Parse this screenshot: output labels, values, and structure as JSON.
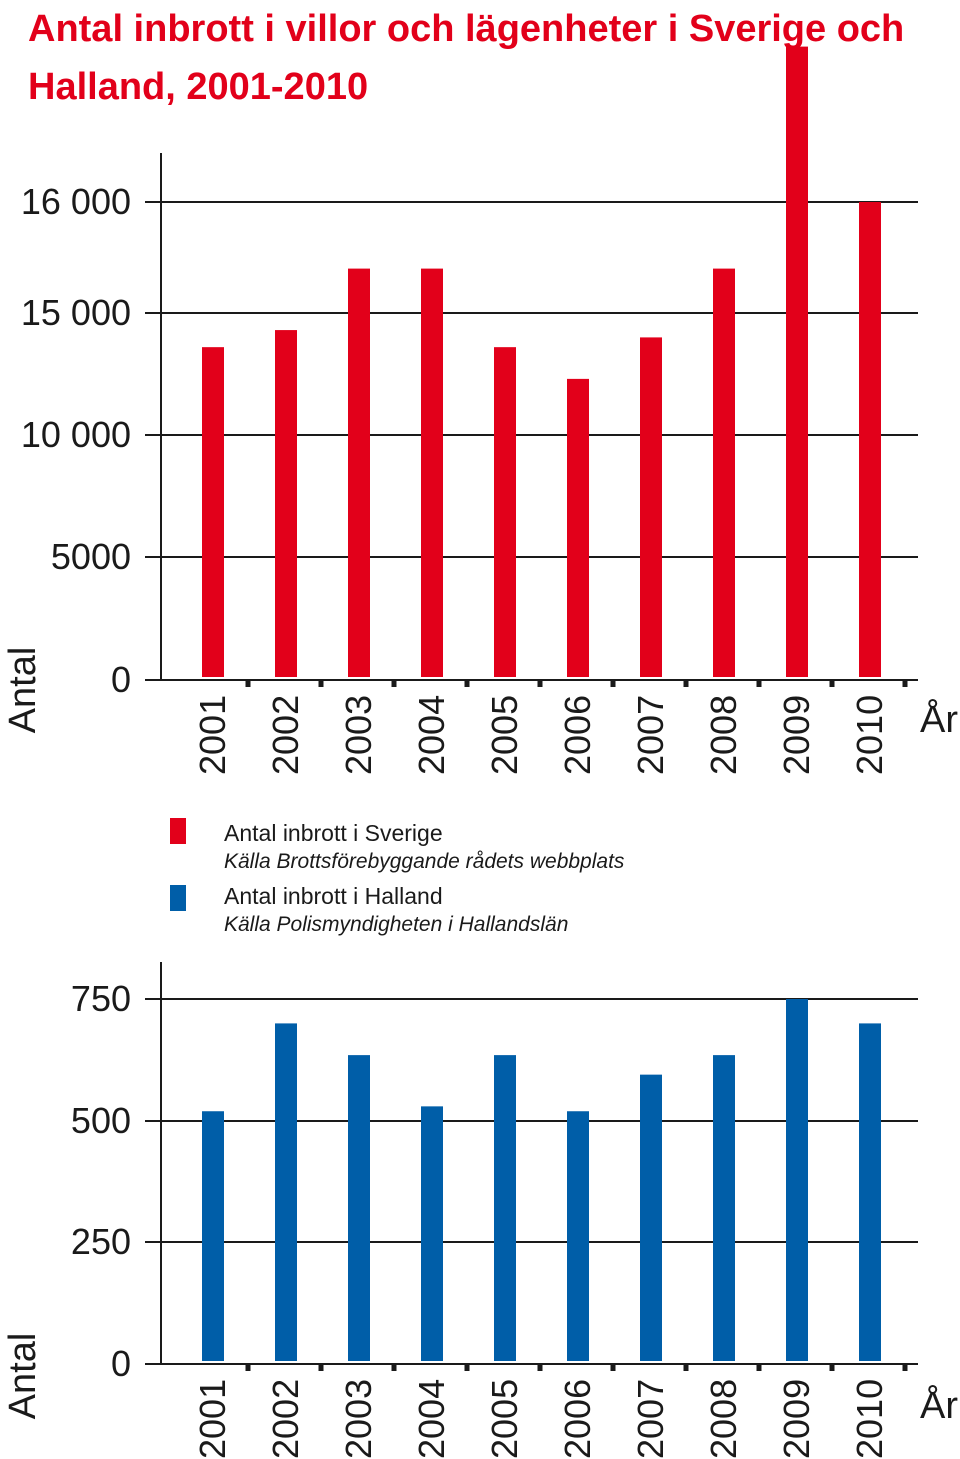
{
  "title": "Antal inbrott i villor och lägenheter i Sverige och Halland, 2001-2010",
  "colors": {
    "title": "#e2001a",
    "sverige": "#e2001a",
    "halland": "#005ea8",
    "axis": "#1a1a1a"
  },
  "legend": [
    {
      "label": "Antal inbrott i Sverige",
      "source": "Källa Brottsförebyggande rådets webbplats",
      "color": "#e2001a"
    },
    {
      "label": "Antal inbrott i Halland",
      "source": "Källa Polismyndigheten i Hallandslän",
      "color": "#005ea8"
    }
  ],
  "chart_data": [
    {
      "type": "bar",
      "series": [
        {
          "name": "Antal inbrott i Sverige",
          "color": "#e2001a",
          "values": [
            13600,
            14300,
            15400,
            15400,
            13600,
            12300,
            14000,
            15400,
            17400,
            16000
          ]
        }
      ],
      "categories": [
        "2001",
        "2002",
        "2003",
        "2004",
        "2005",
        "2006",
        "2007",
        "2008",
        "2009",
        "2010"
      ],
      "yticks": [
        {
          "label": "0",
          "value": 0
        },
        {
          "label": "5000",
          "value": 5000
        },
        {
          "label": "10 000",
          "value": 10000
        },
        {
          "label": "15 000",
          "value": 15000
        },
        {
          "label": "16 000",
          "value": 16000
        }
      ],
      "ylabel": "Antal",
      "xlabel": "År",
      "ylim": [
        0,
        17400
      ],
      "grid": true,
      "note": "broken y-axis scale (non-linear spacing between 10 000, 15 000 and 16 000)"
    },
    {
      "type": "bar",
      "series": [
        {
          "name": "Antal inbrott i Halland",
          "color": "#005ea8",
          "values": [
            520,
            700,
            635,
            530,
            635,
            520,
            595,
            635,
            750,
            700
          ]
        }
      ],
      "categories": [
        "2001",
        "2002",
        "2003",
        "2004",
        "2005",
        "2006",
        "2007",
        "2008",
        "2009",
        "2010"
      ],
      "yticks": [
        {
          "label": "0",
          "value": 0
        },
        {
          "label": "250",
          "value": 250
        },
        {
          "label": "500",
          "value": 500
        },
        {
          "label": "750",
          "value": 750
        }
      ],
      "ylabel": "Antal",
      "xlabel": "År",
      "ylim": [
        0,
        750
      ],
      "grid": true
    }
  ]
}
